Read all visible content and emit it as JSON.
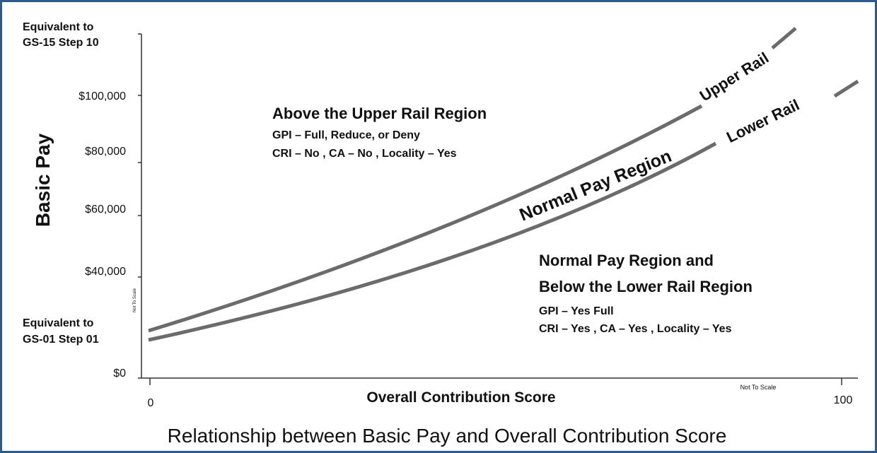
{
  "title": "Relationship between Basic Pay and Overall Contribution Score",
  "y_axis": {
    "label": "Basic Pay",
    "top_label": [
      "Equivalent to",
      "GS-15 Step 10"
    ],
    "ticks": [
      "$100,000",
      "$80,000",
      "$60,000",
      "$40,000",
      "$0"
    ],
    "bottom_label": [
      "Equivalent to",
      "GS-01 Step 01"
    ],
    "note": "Not To Scale"
  },
  "x_axis": {
    "label": "Overall Contribution Score",
    "ticks": [
      "0",
      "100"
    ],
    "note": "Not To Scale"
  },
  "curves": {
    "upper": "Upper Rail",
    "lower": "Lower Rail",
    "between": "Normal Pay Region"
  },
  "regions": [
    {
      "heading": [
        "Above the Upper Rail Region"
      ],
      "lines": [
        "GPI – Full, Reduce, or Deny",
        "CRI – No , CA – No , Locality – Yes"
      ]
    },
    {
      "heading": [
        "Normal Pay Region and",
        "Below the Lower Rail Region"
      ],
      "lines": [
        "GPI – Yes Full",
        "CRI – Yes , CA – Yes , Locality – Yes"
      ]
    }
  ]
}
